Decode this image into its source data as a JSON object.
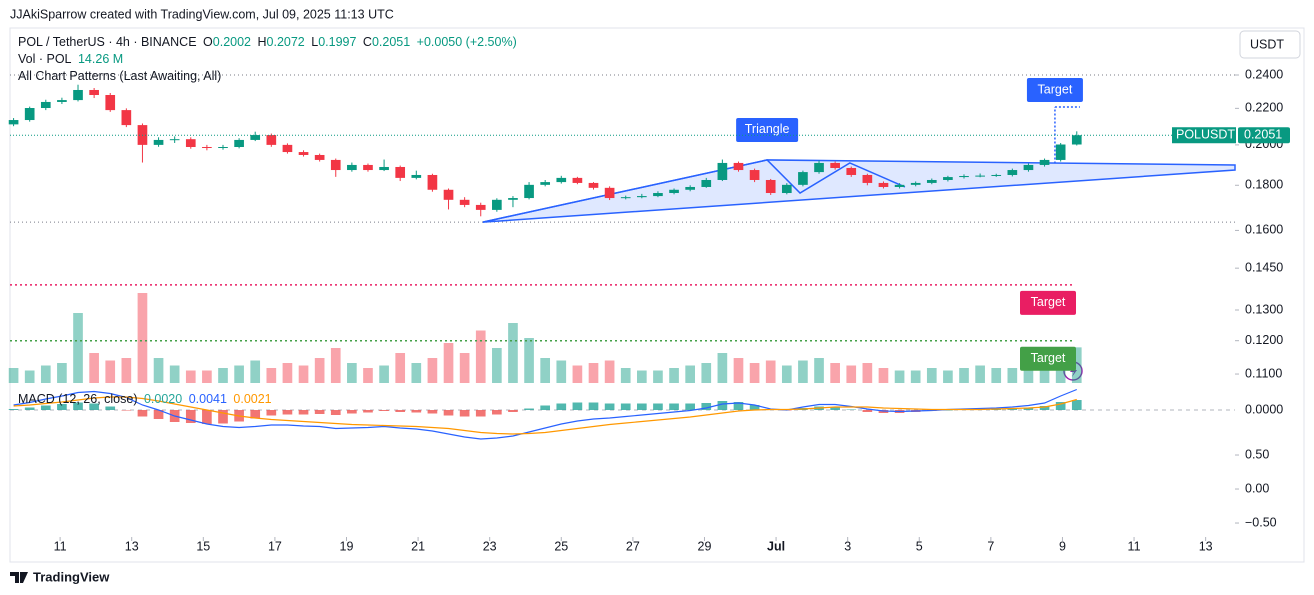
{
  "credit": "JJAkiSparrow created with TradingView.com, Jul 09, 2025 11:13 UTC",
  "brand": "TradingView",
  "header": {
    "symbol": "POL / TetherUS · 4h · BINANCE",
    "o_label": "O",
    "o": "0.2002",
    "h_label": "H",
    "h": "0.2072",
    "l_label": "L",
    "l": "0.1997",
    "c_label": "C",
    "c": "0.2051",
    "change": "+0.0050 (+2.50%)",
    "vol_label": "Vol · POL",
    "vol_value": "14.26 M",
    "patterns_label": "All Chart Patterns (Last Awaiting, All)"
  },
  "currency": "USDT",
  "chart_data": {
    "type": "candlestick",
    "symbol_tag": "POLUSDT",
    "up_color": "#089981",
    "down_color": "#f23645",
    "log_scale": true,
    "xlim": [
      9.6,
      43.82
    ],
    "xticks": [
      11,
      13,
      15,
      17,
      19,
      21,
      23,
      25,
      27,
      29,
      {
        "value": 31,
        "label": "Jul"
      },
      {
        "value": 33,
        "label": "3"
      },
      {
        "value": 35,
        "label": "5"
      },
      {
        "value": 37,
        "label": "7"
      },
      {
        "value": 39,
        "label": "9"
      },
      {
        "value": 41,
        "label": "11"
      },
      {
        "value": 43,
        "label": "13"
      }
    ],
    "ylim": [
      0.1069,
      0.2699
    ],
    "yticks": [
      {
        "value": 0.24,
        "label": "0.2400"
      },
      {
        "value": 0.22,
        "label": "0.2200"
      },
      {
        "value": 0.2,
        "label": "0.2000"
      },
      {
        "value": 0.18,
        "label": "0.1800"
      },
      {
        "value": 0.16,
        "label": "0.1600"
      },
      {
        "value": 0.145,
        "label": "0.1450"
      },
      {
        "value": 0.13,
        "label": "0.1300"
      },
      {
        "value": 0.12,
        "label": "0.1200"
      },
      {
        "value": 0.11,
        "label": "0.1100"
      }
    ],
    "x": [
      9.7,
      10.15,
      10.6,
      11.05,
      11.5,
      11.95,
      12.4,
      12.85,
      13.3,
      13.75,
      14.2,
      14.65,
      15.1,
      15.55,
      16,
      16.45,
      16.9,
      17.35,
      17.8,
      18.25,
      18.7,
      19.15,
      19.6,
      20.05,
      20.5,
      20.95,
      21.4,
      21.85,
      22.3,
      22.75,
      23.2,
      23.65,
      24.1,
      24.55,
      25,
      25.45,
      25.9,
      26.35,
      26.8,
      27.25,
      27.7,
      28.15,
      28.6,
      29.05,
      29.5,
      29.95,
      30.4,
      30.85,
      31.3,
      31.75,
      32.2,
      32.65,
      33.1,
      33.55,
      34,
      34.45,
      34.9,
      35.35,
      35.8,
      36.25,
      36.7,
      37.15,
      37.6,
      38.05,
      38.5,
      38.95,
      39.4
    ],
    "open": [
      0.211,
      0.2134,
      0.2202,
      0.2237,
      0.2248,
      0.2308,
      0.2278,
      0.219,
      0.2106,
      0.2,
      0.2026,
      0.203,
      0.1989,
      0.1984,
      0.1989,
      0.2026,
      0.2052,
      0.2,
      0.1963,
      0.1948,
      0.1923,
      0.1873,
      0.1898,
      0.1873,
      0.1888,
      0.1835,
      0.1849,
      0.1779,
      0.1733,
      0.171,
      0.1688,
      0.1733,
      0.1741,
      0.1802,
      0.1815,
      0.1835,
      0.1811,
      0.1788,
      0.1741,
      0.1745,
      0.175,
      0.1764,
      0.1779,
      0.1792,
      0.1825,
      0.1908,
      0.1873,
      0.1825,
      0.1764,
      0.1802,
      0.1863,
      0.1908,
      0.1883,
      0.1849,
      0.1811,
      0.1792,
      0.1802,
      0.1811,
      0.1825,
      0.1839,
      0.1844,
      0.1846,
      0.1849,
      0.1873,
      0.1898,
      0.1923,
      0.2002
    ],
    "high": [
      0.2145,
      0.221,
      0.225,
      0.2262,
      0.234,
      0.232,
      0.229,
      0.22,
      0.2115,
      0.204,
      0.2045,
      0.204,
      0.2,
      0.2,
      0.2035,
      0.207,
      0.206,
      0.2008,
      0.1972,
      0.1955,
      0.193,
      0.191,
      0.1905,
      0.1925,
      0.1895,
      0.187,
      0.1855,
      0.1785,
      0.1745,
      0.172,
      0.174,
      0.175,
      0.1815,
      0.1825,
      0.1845,
      0.184,
      0.1815,
      0.1795,
      0.1752,
      0.176,
      0.1772,
      0.1785,
      0.18,
      0.1835,
      0.1925,
      0.1915,
      0.188,
      0.183,
      0.181,
      0.187,
      0.192,
      0.1915,
      0.189,
      0.1855,
      0.1818,
      0.181,
      0.1818,
      0.1832,
      0.1845,
      0.1852,
      0.1856,
      0.1855,
      0.188,
      0.1905,
      0.193,
      0.201,
      0.2072
    ],
    "low": [
      0.21,
      0.2125,
      0.219,
      0.2225,
      0.224,
      0.226,
      0.218,
      0.2095,
      0.191,
      0.199,
      0.201,
      0.198,
      0.1972,
      0.1975,
      0.1982,
      0.202,
      0.199,
      0.1955,
      0.194,
      0.1915,
      0.184,
      0.1865,
      0.1865,
      0.1868,
      0.182,
      0.1828,
      0.177,
      0.169,
      0.17,
      0.166,
      0.168,
      0.17,
      0.1735,
      0.1795,
      0.1808,
      0.1805,
      0.178,
      0.1732,
      0.1735,
      0.174,
      0.1745,
      0.1758,
      0.1772,
      0.1788,
      0.182,
      0.1865,
      0.1815,
      0.1755,
      0.1758,
      0.1795,
      0.1855,
      0.1875,
      0.184,
      0.18,
      0.1785,
      0.1785,
      0.1795,
      0.1805,
      0.1818,
      0.1832,
      0.1838,
      0.184,
      0.1842,
      0.1865,
      0.189,
      0.1915,
      0.1997
    ],
    "close": [
      0.2134,
      0.2202,
      0.2237,
      0.2248,
      0.2308,
      0.2278,
      0.219,
      0.2106,
      0.2,
      0.2026,
      0.203,
      0.1989,
      0.1984,
      0.1989,
      0.2026,
      0.2052,
      0.2,
      0.1963,
      0.1948,
      0.1923,
      0.1873,
      0.1898,
      0.1873,
      0.1888,
      0.1835,
      0.1849,
      0.1779,
      0.1733,
      0.171,
      0.1688,
      0.1733,
      0.1741,
      0.1802,
      0.1815,
      0.1835,
      0.1811,
      0.1788,
      0.1741,
      0.1745,
      0.175,
      0.1764,
      0.1779,
      0.1792,
      0.1825,
      0.1908,
      0.1873,
      0.1825,
      0.1764,
      0.1802,
      0.1863,
      0.1908,
      0.1883,
      0.1849,
      0.1811,
      0.1792,
      0.1802,
      0.1811,
      0.1825,
      0.1839,
      0.1844,
      0.1846,
      0.1849,
      0.1873,
      0.1898,
      0.1923,
      0.2002,
      0.2051
    ],
    "volume": {
      "ylim": [
        0,
        40
      ],
      "values": [
        6,
        5,
        7,
        8,
        28,
        12,
        9,
        10,
        36,
        10,
        7,
        5,
        5,
        6,
        7,
        9,
        6,
        8,
        7,
        10,
        14,
        8,
        6,
        7,
        12,
        8,
        10,
        16,
        12,
        21,
        14,
        24,
        18,
        10,
        9,
        7,
        8,
        9,
        6,
        5,
        5,
        6,
        7,
        8,
        12,
        10,
        8,
        9,
        7,
        9,
        10,
        8,
        7,
        8,
        6,
        5,
        5,
        6,
        5,
        6,
        7,
        6,
        6,
        8,
        9,
        12,
        14.26
      ],
      "up_color": "rgba(8,153,129,0.45)",
      "down_color": "rgba(242,54,69,0.45)"
    },
    "levels": [
      0.24,
      0.1635
    ],
    "pattern": {
      "label": "Triangle",
      "color": "#2962ff",
      "area": [
        [
          22.81,
          0.1635
        ],
        [
          30.75,
          0.1923
        ],
        [
          43.82,
          0.1898
        ],
        [
          43.82,
          0.1873
        ]
      ],
      "zigzag": [
        [
          22.81,
          0.1635
        ],
        [
          30.75,
          0.1923
        ],
        [
          31.67,
          0.1764
        ],
        [
          33.06,
          0.1908
        ],
        [
          34.6,
          0.1792
        ]
      ]
    },
    "targets": [
      {
        "label": "Target",
        "value": 0.2208,
        "from": 0.1905,
        "x": 38.79,
        "color": "#2962ff"
      },
      {
        "label": "Target",
        "value": 0.1388,
        "color": "#e91e63"
      },
      {
        "label": "Target",
        "value": 0.12,
        "color": "#43a047"
      }
    ],
    "macd": {
      "title": "MACD (12, 26, close)",
      "ylim": [
        -0.006,
        0.004
      ],
      "yticks": [
        {
          "value": 0,
          "label": "0.0000"
        }
      ],
      "histogram": {
        "name": "0.0020",
        "up_color": "#26a69a",
        "down_color": "#ef5350",
        "values": [
          0.0002,
          0.0005,
          0.0009,
          0.0012,
          0.0015,
          0.0013,
          0.0007,
          -0.0001,
          -0.0013,
          -0.0018,
          -0.0024,
          -0.0026,
          -0.0028,
          -0.0027,
          -0.0023,
          -0.0017,
          -0.0011,
          -0.0009,
          -0.0009,
          -0.0008,
          -0.001,
          -0.0007,
          -0.0005,
          -0.0002,
          -0.0004,
          -0.0005,
          -0.0007,
          -0.0011,
          -0.0013,
          -0.0013,
          -0.0009,
          -0.0004,
          0.0003,
          0.0009,
          0.0013,
          0.0015,
          0.0015,
          0.0013,
          0.0013,
          0.0013,
          0.0013,
          0.0013,
          0.0013,
          0.0014,
          0.0018,
          0.0016,
          0.001,
          0.0001,
          -0.0001,
          0.0004,
          0.0007,
          0.0005,
          0.0001,
          -0.0004,
          -0.0006,
          -0.0006,
          -0.0004,
          -0.0002,
          0.0,
          0.0001,
          0.0002,
          0.0002,
          0.0003,
          0.0005,
          0.0008,
          0.0016,
          0.002
        ]
      },
      "series": [
        {
          "name": "0.0041",
          "color": "#2962ff",
          "values": [
            0.001,
            0.0015,
            0.0022,
            0.0028,
            0.0035,
            0.0037,
            0.0033,
            0.0025,
            0.001,
            0.0,
            -0.0012,
            -0.002,
            -0.0028,
            -0.0033,
            -0.0035,
            -0.0033,
            -0.003,
            -0.003,
            -0.0032,
            -0.0033,
            -0.0037,
            -0.0036,
            -0.0035,
            -0.0033,
            -0.0036,
            -0.0038,
            -0.0042,
            -0.0048,
            -0.0054,
            -0.0058,
            -0.0056,
            -0.0052,
            -0.0044,
            -0.0036,
            -0.0028,
            -0.0022,
            -0.0018,
            -0.0016,
            -0.0013,
            -0.001,
            -0.0007,
            -0.0004,
            -0.0001,
            0.0004,
            0.0012,
            0.0014,
            0.001,
            0.0002,
            0.0,
            0.0006,
            0.0011,
            0.0011,
            0.0007,
            0.0002,
            -0.0002,
            -0.0003,
            -0.0002,
            -0.0001,
            0.0001,
            0.0002,
            0.0003,
            0.0004,
            0.0006,
            0.0009,
            0.0014,
            0.0028,
            0.0041
          ]
        },
        {
          "name": "0.0021",
          "color": "#ff9800",
          "values": [
            0.0008,
            0.001,
            0.0013,
            0.0016,
            0.002,
            0.0024,
            0.0026,
            0.0026,
            0.0023,
            0.0018,
            0.0012,
            0.0006,
            0.0,
            -0.0006,
            -0.0012,
            -0.0016,
            -0.0019,
            -0.0021,
            -0.0023,
            -0.0025,
            -0.0027,
            -0.0029,
            -0.003,
            -0.0031,
            -0.0032,
            -0.0033,
            -0.0035,
            -0.0037,
            -0.0041,
            -0.0045,
            -0.0047,
            -0.0048,
            -0.0047,
            -0.0045,
            -0.0041,
            -0.0037,
            -0.0033,
            -0.0029,
            -0.0026,
            -0.0023,
            -0.002,
            -0.0017,
            -0.0014,
            -0.001,
            -0.0006,
            -0.0002,
            0.0,
            0.0001,
            0.0001,
            0.0002,
            0.0004,
            0.0006,
            0.0006,
            0.0006,
            0.0004,
            0.0003,
            0.0002,
            0.0001,
            0.0001,
            0.0001,
            0.0001,
            0.0002,
            0.0003,
            0.0004,
            0.0006,
            0.0012,
            0.0021
          ]
        }
      ]
    },
    "macd_scale": {
      "ylim": [
        -0.676,
        1.456
      ],
      "yticks": [
        {
          "value": 0.5,
          "label": "0.50"
        },
        {
          "value": 0,
          "label": "0.00"
        },
        {
          "value": -0.5,
          "label": "−0.50"
        }
      ]
    }
  }
}
